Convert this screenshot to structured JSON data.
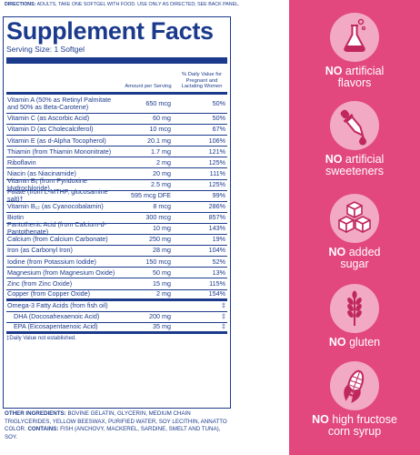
{
  "directions": {
    "label": "DIRECTIONS:",
    "text": "ADULTS, TAKE ONE SOFTGEL WITH FOOD. USE ONLY AS DIRECTED; SEE BACK PANEL."
  },
  "facts": {
    "title": "Supplement Facts",
    "serving_size": "Serving Size: 1 Softgel",
    "col_amount": "Amount per Serving",
    "col_dv": "% Daily Value for Pregnant and Lactating Women",
    "rows": [
      {
        "name": "Vitamin A (50% as Retinyl Palmitate and 50% as Beta-Carotene)",
        "amount": "650 mcg",
        "dv": "50%"
      },
      {
        "name": "Vitamin C (as Ascorbic Acid)",
        "amount": "60 mg",
        "dv": "50%"
      },
      {
        "name": "Vitamin D (as Cholecalciferol)",
        "amount": "10 mcg",
        "dv": "67%"
      },
      {
        "name": "Vitamin E (as d-Alpha Tocopherol)",
        "amount": "20.1 mg",
        "dv": "106%"
      },
      {
        "name": "Thiamin (from Thiamin Mononitrate)",
        "amount": "1.7 mg",
        "dv": "121%"
      },
      {
        "name": "Riboflavin",
        "amount": "2 mg",
        "dv": "125%"
      },
      {
        "name": "Niacin (as Niacinamide)",
        "amount": "20 mg",
        "dv": "111%"
      },
      {
        "name": "Vitamin B₆ (from Pyridoxine Hydrochloride)",
        "amount": "2.5 mg",
        "dv": "125%"
      },
      {
        "name": "Folate (from L-MTHF, glucosamine salt)†",
        "amount": "595 mcg DFE",
        "dv": "99%"
      },
      {
        "name": "Vitamin B₁₂ (as Cyanocobalamin)",
        "amount": "8 mcg",
        "dv": "286%"
      },
      {
        "name": "Biotin",
        "amount": "300 mcg",
        "dv": "857%"
      },
      {
        "name": "Pantothenic Acid (from Calcium-d-Pantothenate)",
        "amount": "10 mg",
        "dv": "143%"
      },
      {
        "name": "Calcium (from Calcium Carbonate)",
        "amount": "250 mg",
        "dv": "19%"
      },
      {
        "name": "Iron (as Carbonyl Iron)",
        "amount": "28 mg",
        "dv": "104%"
      },
      {
        "name": "Iodine (from Potassium Iodide)",
        "amount": "150 mcg",
        "dv": "52%"
      },
      {
        "name": "Magnesium (from Magnesium Oxide)",
        "amount": "50 mg",
        "dv": "13%"
      },
      {
        "name": "Zinc (from Zinc Oxide)",
        "amount": "15 mg",
        "dv": "115%"
      },
      {
        "name": "Copper (from Copper Oxide)",
        "amount": "2 mg",
        "dv": "154%"
      }
    ],
    "omega": {
      "name": "Omega-3 Fatty Acids (from fish oil)",
      "amount": "",
      "dv": "‡"
    },
    "omega_rows": [
      {
        "name": "DHA (Docosahexaenoic Acid)",
        "amount": "200 mg",
        "dv": "‡"
      },
      {
        "name": "EPA (Eicosapentaenoic Acid)",
        "amount": "35 mg",
        "dv": "‡"
      }
    ],
    "footnote": "‡Daily Value not established."
  },
  "ingredients": {
    "label": "OTHER INGREDIENTS:",
    "text": "BOVINE GELATIN, GLYCERIN, MEDIUM CHAIN TRIGLYCERIDES, YELLOW BEESWAX, PURIFIED WATER, SOY LECITHIN, ANNATTO COLOR.",
    "contains_label": "CONTAINS:",
    "contains_text": "FISH (ANCHOVY, MACKEREL, SARDINE, SMELT AND TUNA), SOY."
  },
  "claims": [
    {
      "icon": "flask-icon",
      "bold": "NO",
      "rest": "artificial",
      "line2": "flavors"
    },
    {
      "icon": "dropper-icon",
      "bold": "NO",
      "rest": "artificial",
      "line2": "sweeteners"
    },
    {
      "icon": "sugar-cubes-icon",
      "bold": "NO",
      "rest": "added",
      "line2": "sugar"
    },
    {
      "icon": "wheat-icon",
      "bold": "NO",
      "rest": "gluten",
      "line2": ""
    },
    {
      "icon": "corn-icon",
      "bold": "NO",
      "rest": "high fructose",
      "line2": "corn syrup"
    }
  ],
  "colors": {
    "brand_blue": "#1b3a8c",
    "panel_pink": "#e2477d",
    "icon_circle": "#f2a9c3",
    "icon_ink": "#c0275d"
  }
}
